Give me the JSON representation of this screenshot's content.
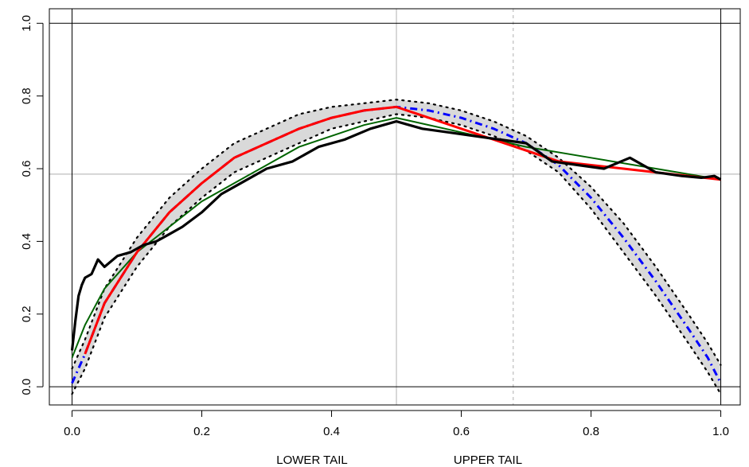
{
  "chart_data": {
    "type": "line",
    "title": "",
    "xlabel": "",
    "ylabel": "",
    "xlim": [
      -0.035,
      1.03
    ],
    "ylim": [
      -0.05,
      1.04
    ],
    "x_ticks": [
      "0.0",
      "0.2",
      "0.4",
      "0.6",
      "0.8",
      "1.0"
    ],
    "y_ticks": [
      "0.0",
      "0.2",
      "0.4",
      "0.6",
      "0.8",
      "1.0"
    ],
    "tail_labels": {
      "lower": "LOWER TAIL",
      "upper": "UPPER TAIL"
    },
    "reference_lines": {
      "horizontal_black": [
        0.0,
        1.0
      ],
      "vertical_black": [
        0.0,
        1.0
      ],
      "horizontal_gray": [
        0.585
      ],
      "vertical_gray": [
        0.5
      ],
      "vertical_gray_dashed": [
        0.68
      ]
    },
    "colors": {
      "empirical": "#000000",
      "fit_red": "#ff0000",
      "fit_blue": "#0000ff",
      "fit_green": "#006400",
      "envelope": "#000000",
      "simulations": "#d9d9d9",
      "gray_ref": "#bebebe"
    },
    "series": [
      {
        "x": [
          0.0,
          0.005,
          0.01,
          0.015,
          0.02,
          0.03,
          0.04,
          0.05,
          0.07,
          0.09,
          0.11,
          0.13,
          0.15,
          0.17,
          0.2,
          0.23,
          0.26,
          0.3,
          0.34,
          0.38,
          0.42,
          0.46,
          0.5,
          0.54,
          0.58,
          0.62,
          0.66,
          0.7,
          0.74,
          0.78,
          0.82,
          0.86,
          0.9,
          0.94,
          0.97,
          0.99,
          1.0
        ],
        "y": [
          0.1,
          0.18,
          0.25,
          0.28,
          0.3,
          0.31,
          0.35,
          0.33,
          0.36,
          0.37,
          0.39,
          0.4,
          0.42,
          0.44,
          0.48,
          0.53,
          0.56,
          0.6,
          0.62,
          0.66,
          0.68,
          0.71,
          0.73,
          0.71,
          0.7,
          0.69,
          0.68,
          0.67,
          0.62,
          0.61,
          0.6,
          0.63,
          0.59,
          0.58,
          0.575,
          0.58,
          0.57
        ]
      },
      {
        "x": [
          0.02,
          0.05,
          0.1,
          0.15,
          0.2,
          0.25,
          0.3,
          0.35,
          0.4,
          0.45,
          0.5,
          0.55,
          0.6,
          0.65,
          0.7,
          0.75,
          0.8,
          0.85,
          0.9,
          0.95,
          1.0
        ],
        "y": [
          0.09,
          0.23,
          0.37,
          0.48,
          0.56,
          0.63,
          0.67,
          0.71,
          0.74,
          0.76,
          0.77,
          0.74,
          0.71,
          0.68,
          0.65,
          0.62,
          0.61,
          0.6,
          0.59,
          0.58,
          0.57
        ]
      },
      {
        "x": [
          0.0,
          0.02,
          0.05,
          0.1,
          0.15,
          0.2,
          0.25,
          0.3,
          0.35,
          0.4,
          0.45,
          0.5,
          0.55,
          0.6,
          0.65,
          0.7,
          0.75,
          0.8,
          0.85,
          0.9,
          0.95,
          0.98,
          1.0
        ],
        "y": [
          0.01,
          0.09,
          0.23,
          0.37,
          0.48,
          0.56,
          0.63,
          0.67,
          0.71,
          0.74,
          0.76,
          0.77,
          0.76,
          0.74,
          0.71,
          0.67,
          0.61,
          0.52,
          0.41,
          0.29,
          0.16,
          0.08,
          0.01
        ]
      },
      {
        "x": [
          0.0,
          0.02,
          0.05,
          0.1,
          0.15,
          0.2,
          0.25,
          0.3,
          0.35,
          0.4,
          0.45,
          0.5,
          0.6,
          0.7,
          0.8,
          0.9,
          1.0
        ],
        "y": [
          0.08,
          0.17,
          0.27,
          0.37,
          0.44,
          0.51,
          0.56,
          0.61,
          0.66,
          0.69,
          0.72,
          0.74,
          0.7,
          0.66,
          0.63,
          0.6,
          0.57
        ]
      },
      {
        "x": [
          0.0,
          0.02,
          0.05,
          0.1,
          0.15,
          0.2,
          0.25,
          0.3,
          0.35,
          0.4,
          0.45,
          0.5,
          0.55,
          0.6,
          0.65,
          0.7,
          0.75,
          0.8,
          0.85,
          0.9,
          0.95,
          0.98,
          1.0
        ],
        "y": [
          0.05,
          0.13,
          0.27,
          0.41,
          0.52,
          0.6,
          0.67,
          0.71,
          0.75,
          0.77,
          0.78,
          0.79,
          0.78,
          0.76,
          0.73,
          0.69,
          0.63,
          0.55,
          0.45,
          0.33,
          0.2,
          0.12,
          0.06
        ]
      },
      {
        "x": [
          0.0,
          0.02,
          0.05,
          0.1,
          0.15,
          0.2,
          0.25,
          0.3,
          0.35,
          0.4,
          0.45,
          0.5,
          0.55,
          0.6,
          0.65,
          0.7,
          0.75,
          0.8,
          0.85,
          0.9,
          0.95,
          0.98,
          1.0
        ],
        "y": [
          -0.02,
          0.05,
          0.19,
          0.33,
          0.44,
          0.52,
          0.59,
          0.63,
          0.67,
          0.71,
          0.73,
          0.75,
          0.74,
          0.72,
          0.69,
          0.65,
          0.59,
          0.49,
          0.37,
          0.25,
          0.12,
          0.04,
          -0.02
        ]
      }
    ]
  }
}
